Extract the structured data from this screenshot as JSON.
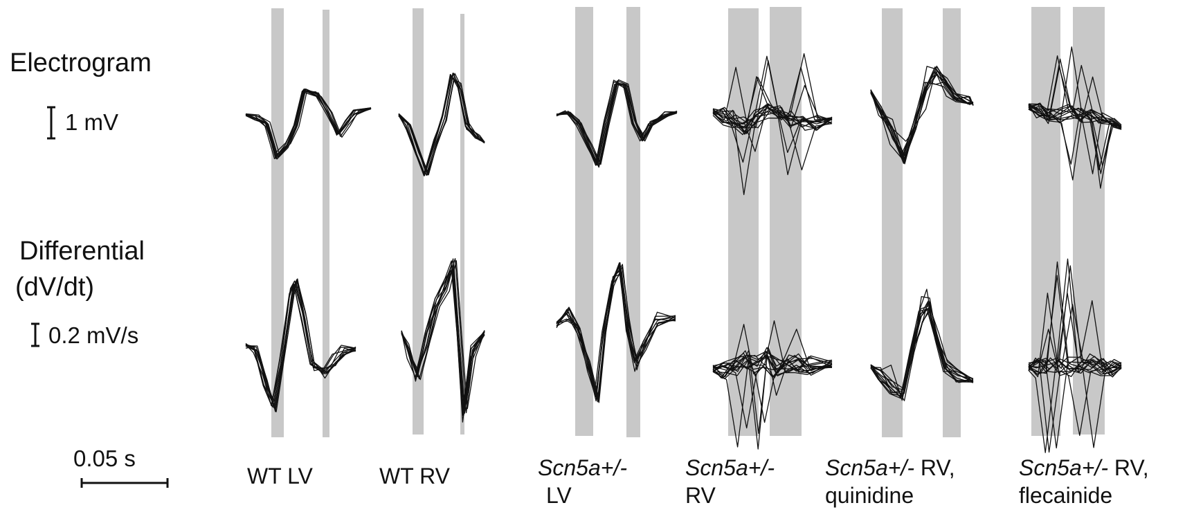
{
  "labels": {
    "row_electrogram": "Electrogram",
    "row_differential_1": "Differential",
    "row_differential_2": "(dV/dt)",
    "scale_electrogram": "1 mV",
    "scale_differential": "0.2 mV/s",
    "scale_time": "0.05 s"
  },
  "panels": [
    {
      "id": "wt-lv",
      "line1_italic": "",
      "line1_rest": "WT LV",
      "line2": "",
      "n_traces": 10
    },
    {
      "id": "wt-rv",
      "line1_italic": "",
      "line1_rest": "WT RV",
      "line2": "",
      "n_traces": 10
    },
    {
      "id": "scn-lv",
      "line1_italic": "Scn5a+/-",
      "line1_rest": "",
      "line2": "LV",
      "n_traces": 10
    },
    {
      "id": "scn-rv",
      "line1_italic": "Scn5a+/-",
      "line1_rest": "",
      "line2": "RV",
      "n_traces": 16
    },
    {
      "id": "scn-rv-quinidine",
      "line1_italic": "Scn5a+/-",
      "line1_rest": " RV,",
      "line2": "quinidine",
      "n_traces": 12
    },
    {
      "id": "scn-rv-flecainide",
      "line1_italic": "Scn5a+/-",
      "line1_rest": " RV,",
      "line2": "flecainide",
      "n_traces": 16
    }
  ],
  "colors": {
    "trace": "#111111",
    "shading": "#c8c8c8",
    "text": "#111111"
  },
  "chart_data": {
    "type": "line",
    "title": "",
    "xlabel": "",
    "ylabel": "",
    "grid": false,
    "legend": "none",
    "scale_bars": {
      "time_s": 0.05,
      "electrogram_mV": 1,
      "differential_mV_per_s": 0.2
    },
    "series": [
      {
        "panel": "wt-lv",
        "row": "electrogram",
        "traces": 10
      },
      {
        "panel": "wt-lv",
        "row": "differential",
        "traces": 10
      },
      {
        "panel": "wt-rv",
        "row": "electrogram",
        "traces": 10
      },
      {
        "panel": "wt-rv",
        "row": "differential",
        "traces": 10
      },
      {
        "panel": "scn-lv",
        "row": "electrogram",
        "traces": 10
      },
      {
        "panel": "scn-lv",
        "row": "differential",
        "traces": 10
      },
      {
        "panel": "scn-rv",
        "row": "electrogram",
        "traces": 16
      },
      {
        "panel": "scn-rv",
        "row": "differential",
        "traces": 16
      },
      {
        "panel": "scn-rv-quinidine",
        "row": "electrogram",
        "traces": 12
      },
      {
        "panel": "scn-rv-quinidine",
        "row": "differential",
        "traces": 12
      },
      {
        "panel": "scn-rv-flecainide",
        "row": "electrogram",
        "traces": 16
      },
      {
        "panel": "scn-rv-flecainide",
        "row": "differential",
        "traces": 16
      }
    ]
  }
}
